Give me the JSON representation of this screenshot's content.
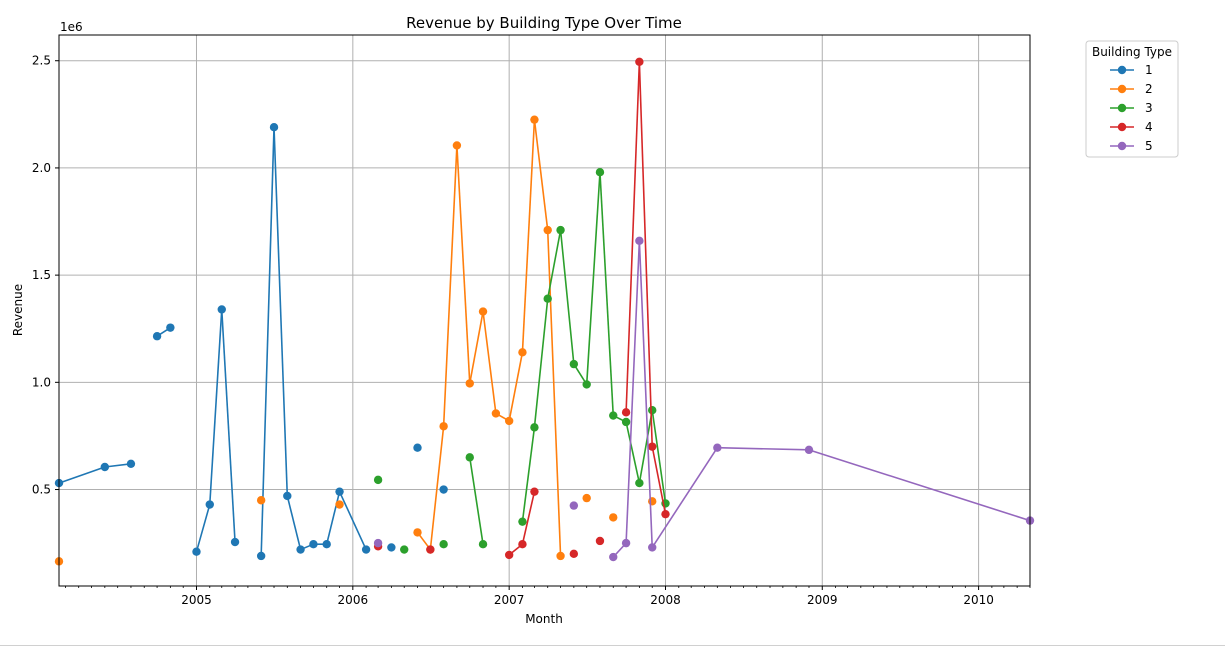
{
  "chart_data": {
    "type": "line",
    "title": "Revenue by Building Type Over Time",
    "xlabel": "Month",
    "ylabel": "Revenue",
    "y_offset_label": "1e6",
    "x_axis": "date",
    "xlim": [
      "2004-02-15",
      "2010-05-01"
    ],
    "ylim": [
      50000,
      2620000
    ],
    "x_ticks": [
      "2005",
      "2006",
      "2007",
      "2008",
      "2009",
      "2010"
    ],
    "y_ticks": [
      0.5,
      1.0,
      1.5,
      2.0,
      2.5
    ],
    "y_tick_labels": [
      "0.5",
      "1.0",
      "1.5",
      "2.0",
      "2.5"
    ],
    "grid": true,
    "legend": {
      "title": "Building Type",
      "position": "outside-top-right"
    },
    "series": [
      {
        "name": "1",
        "color": "#1f77b4",
        "points": [
          [
            "2004-02-15",
            530000
          ],
          [
            "2004-06-01",
            605000
          ],
          [
            "2004-08-01",
            620000
          ],
          [
            "2004-10-01",
            1215000
          ],
          [
            "2004-11-01",
            1255000
          ],
          [
            "2005-01-01",
            210000
          ],
          [
            "2005-02-01",
            430000
          ],
          [
            "2005-03-01",
            1340000
          ],
          [
            "2005-04-01",
            255000
          ],
          [
            "2005-06-01",
            190000
          ],
          [
            "2005-07-01",
            2190000
          ],
          [
            "2005-08-01",
            470000
          ],
          [
            "2005-09-01",
            220000
          ],
          [
            "2005-10-01",
            245000
          ],
          [
            "2005-11-01",
            245000
          ],
          [
            "2005-12-01",
            490000
          ],
          [
            "2006-02-01",
            220000
          ],
          [
            "2006-04-01",
            230000
          ],
          [
            "2006-06-01",
            695000
          ],
          [
            "2006-08-01",
            500000
          ]
        ]
      },
      {
        "name": "2",
        "color": "#ff7f0e",
        "points": [
          [
            "2004-02-15",
            165000
          ],
          [
            "2005-06-01",
            450000
          ],
          [
            "2005-12-01",
            430000
          ],
          [
            "2006-06-01",
            300000
          ],
          [
            "2006-07-01",
            220000
          ],
          [
            "2006-08-01",
            795000
          ],
          [
            "2006-09-01",
            2105000
          ],
          [
            "2006-10-01",
            995000
          ],
          [
            "2006-11-01",
            1330000
          ],
          [
            "2006-12-01",
            855000
          ],
          [
            "2007-01-01",
            820000
          ],
          [
            "2007-02-01",
            1140000
          ],
          [
            "2007-03-01",
            2225000
          ],
          [
            "2007-04-01",
            1710000
          ],
          [
            "2007-05-01",
            190000
          ],
          [
            "2007-07-01",
            460000
          ],
          [
            "2007-09-01",
            370000
          ],
          [
            "2007-12-01",
            445000
          ]
        ]
      },
      {
        "name": "3",
        "color": "#2ca02c",
        "points": [
          [
            "2006-03-01",
            545000
          ],
          [
            "2006-05-01",
            220000
          ],
          [
            "2006-08-01",
            245000
          ],
          [
            "2006-10-01",
            650000
          ],
          [
            "2006-11-01",
            245000
          ],
          [
            "2007-02-01",
            350000
          ],
          [
            "2007-03-01",
            790000
          ],
          [
            "2007-04-01",
            1390000
          ],
          [
            "2007-05-01",
            1710000
          ],
          [
            "2007-06-01",
            1085000
          ],
          [
            "2007-07-01",
            990000
          ],
          [
            "2007-08-01",
            1980000
          ],
          [
            "2007-09-01",
            845000
          ],
          [
            "2007-10-01",
            815000
          ],
          [
            "2007-11-01",
            530000
          ],
          [
            "2007-12-01",
            870000
          ],
          [
            "2008-01-01",
            435000
          ]
        ]
      },
      {
        "name": "4",
        "color": "#d62728",
        "points": [
          [
            "2006-03-01",
            235000
          ],
          [
            "2006-07-01",
            220000
          ],
          [
            "2007-01-01",
            195000
          ],
          [
            "2007-02-01",
            245000
          ],
          [
            "2007-03-01",
            490000
          ],
          [
            "2007-06-01",
            200000
          ],
          [
            "2007-08-01",
            260000
          ],
          [
            "2007-10-01",
            860000
          ],
          [
            "2007-11-01",
            2495000
          ],
          [
            "2007-12-01",
            700000
          ],
          [
            "2008-01-01",
            385000
          ]
        ]
      },
      {
        "name": "5",
        "color": "#9467bd",
        "points": [
          [
            "2006-03-01",
            250000
          ],
          [
            "2007-06-01",
            425000
          ],
          [
            "2007-09-01",
            185000
          ],
          [
            "2007-10-01",
            250000
          ],
          [
            "2007-11-01",
            1660000
          ],
          [
            "2007-12-01",
            230000
          ],
          [
            "2008-05-01",
            695000
          ],
          [
            "2008-12-01",
            685000
          ],
          [
            "2010-05-01",
            355000
          ]
        ]
      }
    ]
  }
}
